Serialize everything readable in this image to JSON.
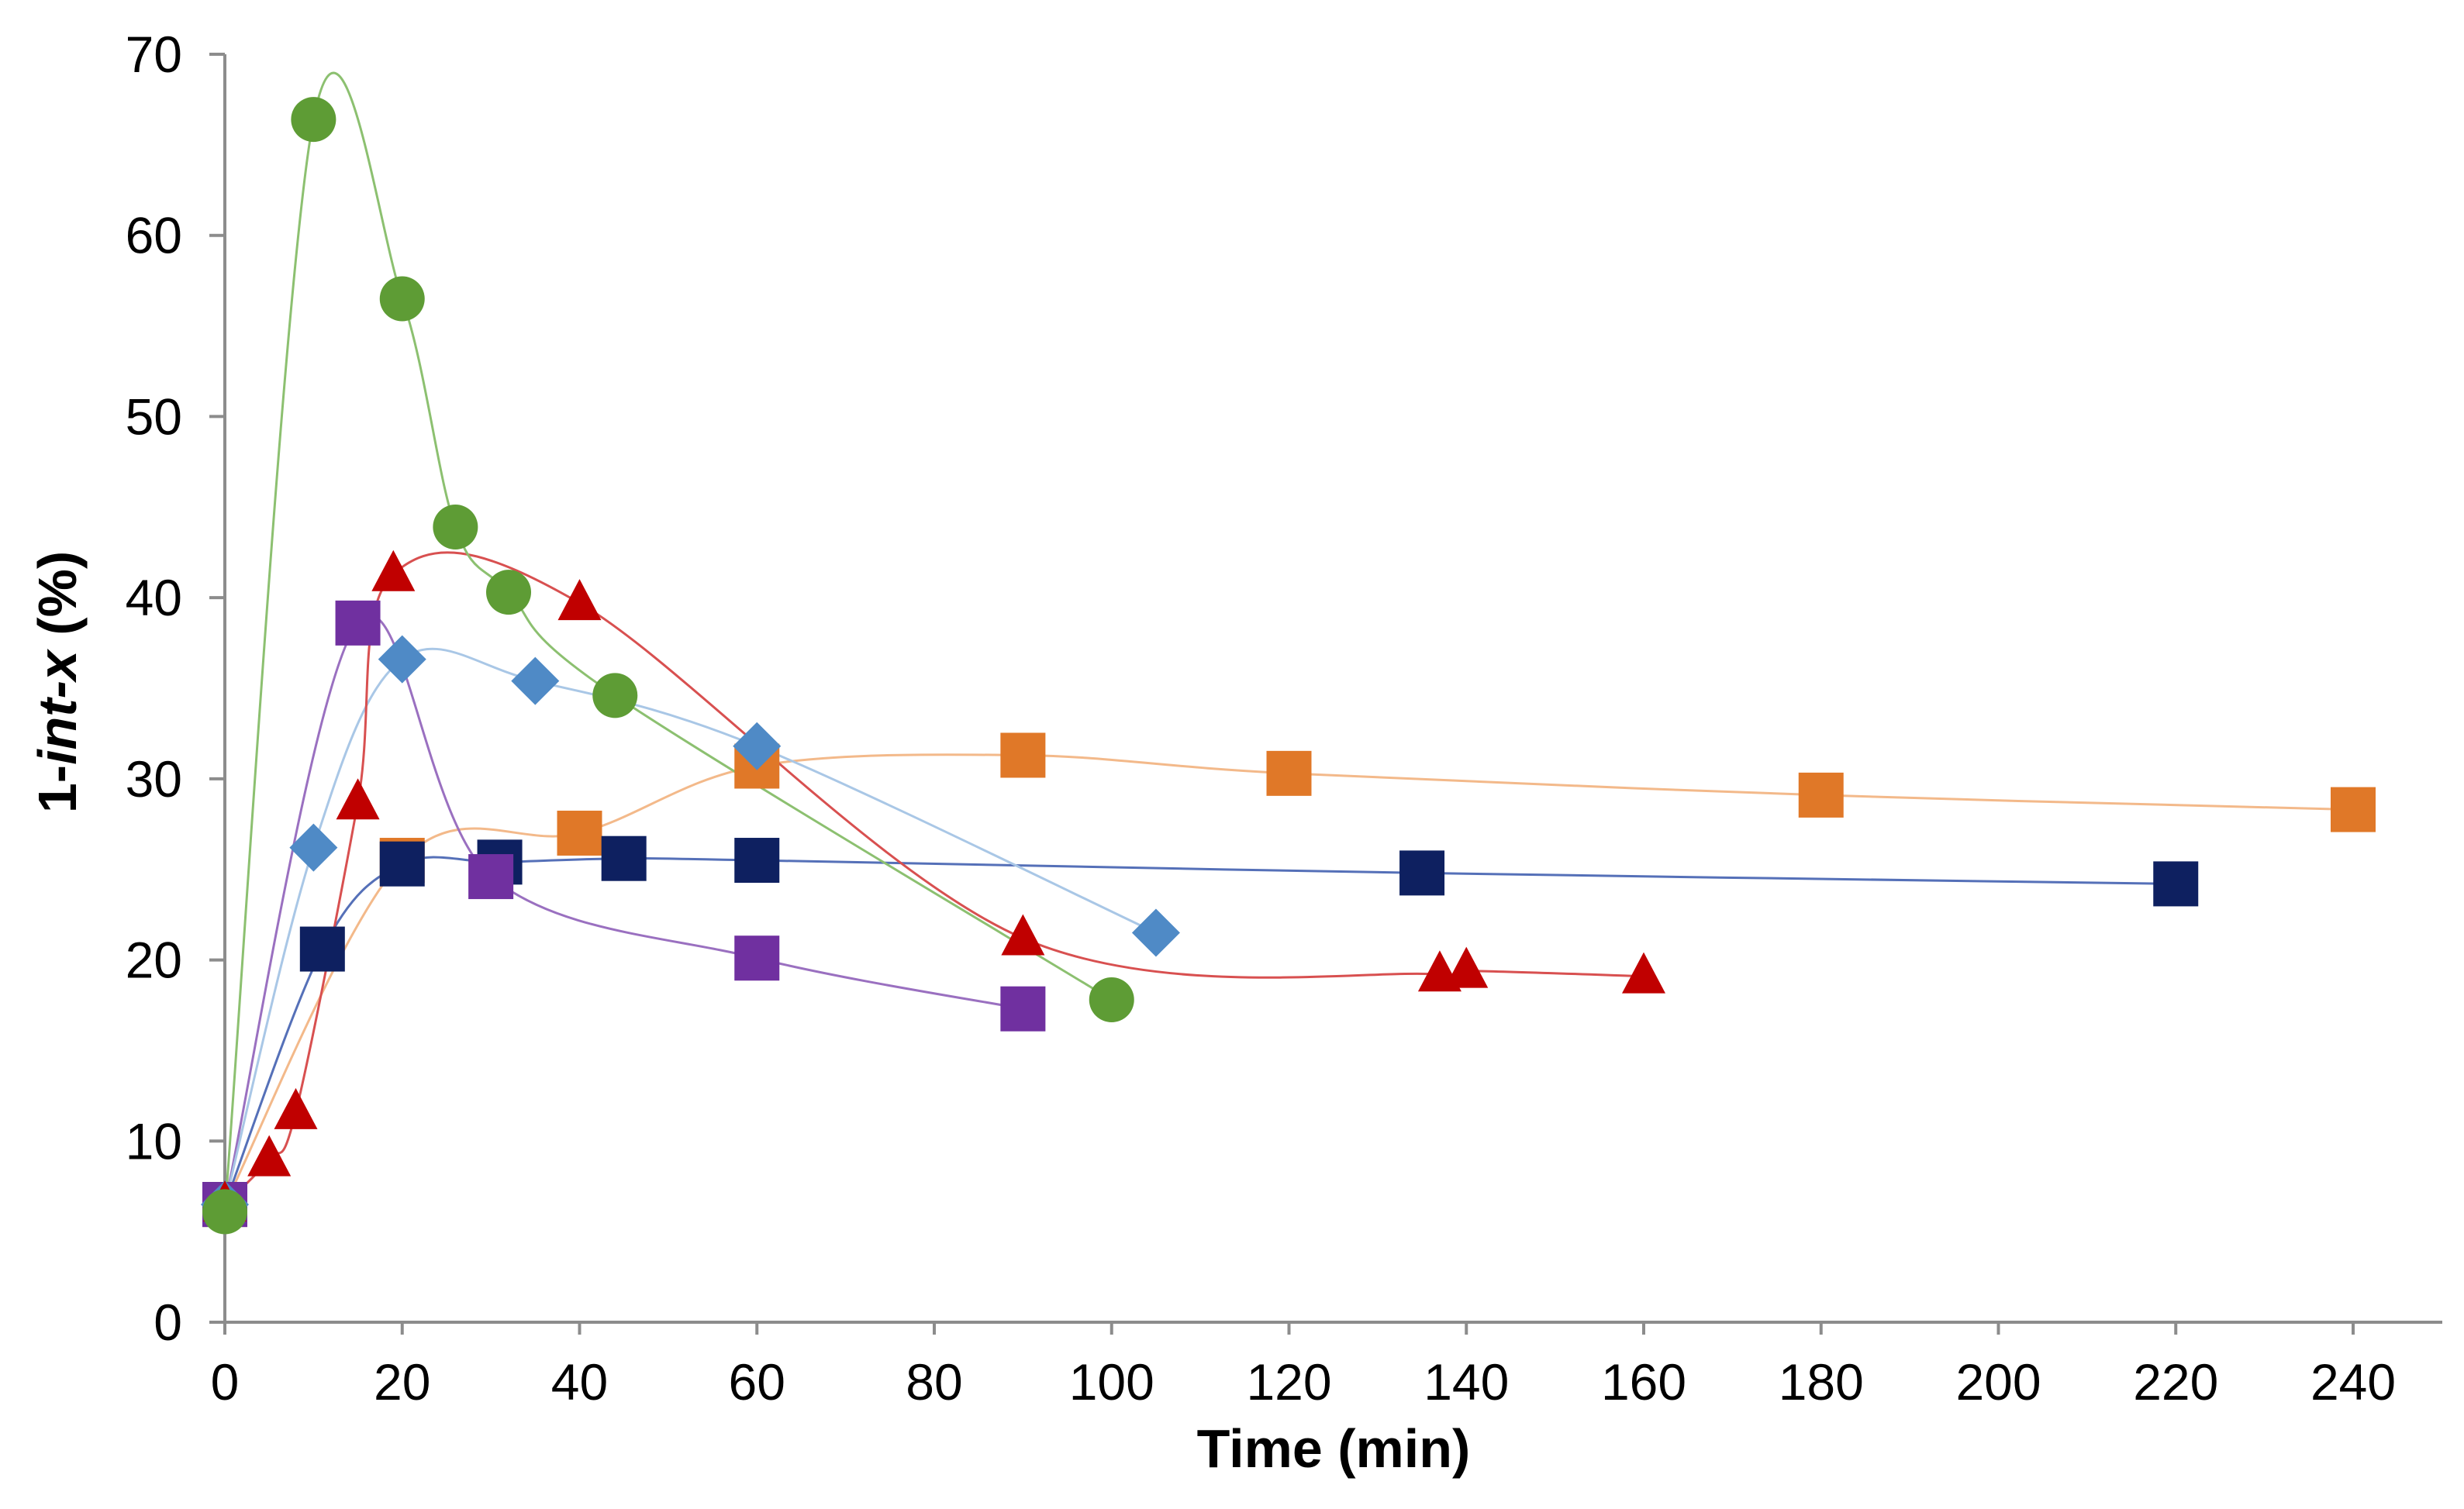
{
  "chart_data": {
    "type": "scatter",
    "title": "",
    "xlabel": "Time (min)",
    "ylabel": {
      "prefix": "1-",
      "italic": "int-x",
      "suffix": " (%)"
    },
    "xlim": [
      0,
      240
    ],
    "ylim": [
      0,
      70
    ],
    "xticks": [
      0,
      20,
      40,
      60,
      80,
      100,
      120,
      140,
      160,
      180,
      200,
      220,
      240
    ],
    "yticks": [
      0,
      10,
      20,
      30,
      40,
      50,
      60,
      70
    ],
    "grid": false,
    "legend": "none",
    "series": [
      {
        "name": "orange-squares",
        "marker": "square",
        "color": "#E07828",
        "line_color": "#F3B98A",
        "points": [
          [
            0,
            6.5
          ],
          [
            20,
            25.5
          ],
          [
            40,
            27
          ],
          [
            60,
            30.7
          ],
          [
            90,
            31.3
          ],
          [
            120,
            30.3
          ],
          [
            180,
            29.1
          ],
          [
            240,
            28.3
          ]
        ]
      },
      {
        "name": "navy-squares",
        "marker": "square",
        "color": "#0E2060",
        "line_color": "#5570B8",
        "points": [
          [
            0,
            6.5
          ],
          [
            11,
            20.6
          ],
          [
            20,
            25.3
          ],
          [
            31,
            25.4
          ],
          [
            45,
            25.6
          ],
          [
            60,
            25.5
          ],
          [
            135,
            24.8
          ],
          [
            220,
            24.2
          ]
        ]
      },
      {
        "name": "purple-squares",
        "marker": "square",
        "color": "#7030A0",
        "line_color": "#9A70C0",
        "points": [
          [
            0,
            6.5
          ],
          [
            15,
            38.6
          ],
          [
            30,
            24.6
          ],
          [
            60,
            20.1
          ],
          [
            90,
            17.3
          ]
        ]
      },
      {
        "name": "blue-diamonds",
        "marker": "diamond",
        "color": "#4F8AC6",
        "line_color": "#A9C7E6",
        "points": [
          [
            0,
            6.5
          ],
          [
            10,
            26.2
          ],
          [
            20,
            36.6
          ],
          [
            35,
            35.4
          ],
          [
            60,
            31.8
          ],
          [
            105,
            21.5
          ]
        ]
      },
      {
        "name": "red-triangles",
        "marker": "triangle",
        "color": "#C00000",
        "line_color": "#D85050",
        "points": [
          [
            0,
            6.5
          ],
          [
            5,
            9
          ],
          [
            8,
            11.6
          ],
          [
            15,
            28.7
          ],
          [
            19,
            41.3
          ],
          [
            40,
            39.7
          ],
          [
            90,
            21.2
          ],
          [
            137,
            19.2
          ],
          [
            140,
            19.4
          ],
          [
            160,
            19.1
          ]
        ]
      },
      {
        "name": "green-circles",
        "marker": "circle",
        "color": "#5E9C35",
        "line_color": "#8CC070",
        "points": [
          [
            0,
            6.1
          ],
          [
            10,
            66.4
          ],
          [
            20,
            56.5
          ],
          [
            26,
            43.9
          ],
          [
            32,
            40.3
          ],
          [
            44,
            34.6
          ],
          [
            100,
            17.8
          ]
        ]
      }
    ]
  }
}
